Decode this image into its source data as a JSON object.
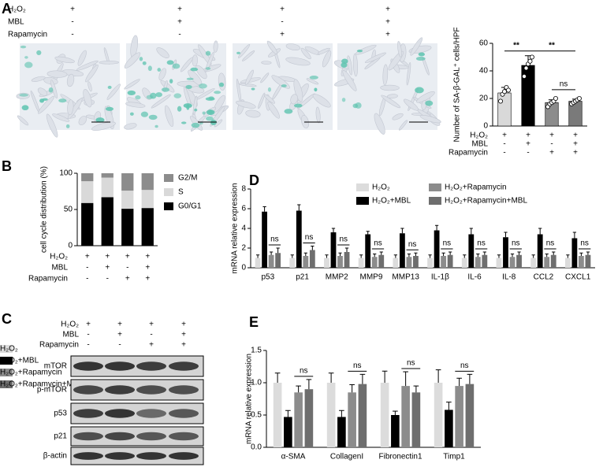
{
  "panel_labels": [
    "A",
    "B",
    "C",
    "D",
    "E"
  ],
  "treatments": {
    "rows": [
      "H₂O₂",
      "MBL",
      "Rapamycin"
    ],
    "signs": [
      [
        "+",
        "+",
        "+",
        "+"
      ],
      [
        "-",
        "+",
        "-",
        "+"
      ],
      [
        "-",
        "-",
        "+",
        "+"
      ]
    ]
  },
  "chart_data": [
    {
      "type": "bar",
      "ylabel": "Number of SA-β-GAL⁺ cells/HPF",
      "categories": [
        null,
        null,
        null,
        null
      ],
      "values": [
        24,
        44,
        17,
        18
      ],
      "errors": [
        4,
        7,
        2,
        1.5
      ],
      "points": [
        [
          18,
          23,
          25,
          28,
          26
        ],
        [
          36,
          42,
          45,
          47,
          50
        ],
        [
          14,
          16,
          17,
          18,
          20
        ],
        [
          16,
          17,
          18,
          19,
          20
        ]
      ],
      "colors": [
        "#d9d9d9",
        "#000000",
        "#8c8c8c",
        "#7a7a7a"
      ],
      "ylim": [
        0,
        60
      ],
      "yticks": [
        0,
        20,
        40,
        60
      ],
      "annotations": [
        {
          "text": "**",
          "between": [
            0,
            1
          ]
        },
        {
          "text": "**",
          "between": [
            1,
            3
          ]
        },
        {
          "text": "ns",
          "between": [
            2,
            3
          ]
        }
      ]
    },
    {
      "type": "stacked_bar",
      "ylabel": "cell cycle distribution (%)",
      "categories": [
        null,
        null,
        null,
        null
      ],
      "series": [
        {
          "name": "G0/G1",
          "color": "#000000",
          "values": [
            59,
            67,
            51,
            52
          ]
        },
        {
          "name": "S",
          "color": "#d9d9d9",
          "values": [
            30,
            27,
            25,
            25
          ]
        },
        {
          "name": "G2/M",
          "color": "#8c8c8c",
          "values": [
            11,
            6,
            24,
            23
          ]
        }
      ],
      "ylim": [
        0,
        100
      ],
      "yticks": [
        0,
        50,
        100
      ]
    },
    {
      "type": "grouped_bar",
      "ylabel": "mRNA relative expression",
      "categories": [
        "p53",
        "p21",
        "MMP2",
        "MMP9",
        "MMP13",
        "IL-1β",
        "IL-6",
        "IL-8",
        "CCL2",
        "CXCL1"
      ],
      "series": [
        {
          "name": "H₂O₂",
          "color": "#dcdcdc",
          "values": [
            1,
            1,
            1,
            1,
            1,
            1,
            1,
            1,
            1,
            1
          ],
          "errors": [
            0.3,
            0.3,
            0.3,
            0.3,
            0.3,
            0.3,
            0.3,
            0.3,
            0.3,
            0.3
          ]
        },
        {
          "name": "H₂O₂+MBL",
          "color": "#000000",
          "values": [
            5.7,
            5.8,
            3.6,
            3.4,
            3.5,
            3.8,
            3.4,
            3.1,
            3.4,
            3.0
          ],
          "errors": [
            0.5,
            0.6,
            0.4,
            0.3,
            0.5,
            0.5,
            0.6,
            0.5,
            0.6,
            0.6
          ]
        },
        {
          "name": "H₂O₂+Rapamycin",
          "color": "#8c8c8c",
          "values": [
            1.3,
            1.2,
            1.2,
            1.1,
            1.1,
            1.2,
            1.1,
            1.1,
            1.1,
            1.2
          ],
          "errors": [
            0.3,
            0.3,
            0.3,
            0.3,
            0.3,
            0.3,
            0.3,
            0.3,
            0.3,
            0.3
          ]
        },
        {
          "name": "H₂O₂+Rapamycin+MBL",
          "color": "#6e6e6e",
          "values": [
            1.5,
            1.8,
            1.6,
            1.3,
            1.2,
            1.3,
            1.3,
            1.3,
            1.3,
            1.3
          ],
          "errors": [
            0.5,
            0.4,
            0.4,
            0.3,
            0.3,
            0.3,
            0.3,
            0.3,
            0.3,
            0.3
          ]
        }
      ],
      "ylim": [
        0,
        8
      ],
      "yticks": [
        0,
        2,
        4,
        6,
        8
      ],
      "pair_label": "ns",
      "pair_series": [
        2,
        3
      ]
    },
    {
      "type": "grouped_bar",
      "ylabel": "mRNA relative expression",
      "categories": [
        "α-SMA",
        "CollagenI",
        "Fibronectin1",
        "Timp1"
      ],
      "series": [
        {
          "name": "H₂O₂",
          "color": "#dcdcdc",
          "values": [
            1.0,
            1.0,
            1.0,
            1.0
          ],
          "errors": [
            0.15,
            0.15,
            0.18,
            0.2
          ]
        },
        {
          "name": "H₂O₂+MBL",
          "color": "#000000",
          "values": [
            0.47,
            0.47,
            0.5,
            0.58
          ],
          "errors": [
            0.1,
            0.1,
            0.06,
            0.12
          ]
        },
        {
          "name": "H₂O₂+Rapamycin",
          "color": "#8c8c8c",
          "values": [
            0.85,
            0.85,
            0.95,
            0.95
          ],
          "errors": [
            0.1,
            0.12,
            0.22,
            0.12
          ]
        },
        {
          "name": "H₂O₂+Rapamycin+MBL",
          "color": "#6e6e6e",
          "values": [
            0.9,
            0.98,
            0.85,
            0.98
          ],
          "errors": [
            0.15,
            0.15,
            0.1,
            0.15
          ]
        }
      ],
      "ylim": [
        0,
        1.5
      ],
      "yticks": [
        {
          "value": 0,
          "label": "0.0"
        },
        0.5,
        {
          "value": 1,
          "label": "1.0"
        },
        1.5
      ],
      "pair_label": "ns",
      "pair_series": [
        2,
        3
      ]
    }
  ],
  "blot": {
    "proteins": [
      "mTOR",
      "p-mTOR",
      "p53",
      "p21",
      "β-actin"
    ]
  }
}
